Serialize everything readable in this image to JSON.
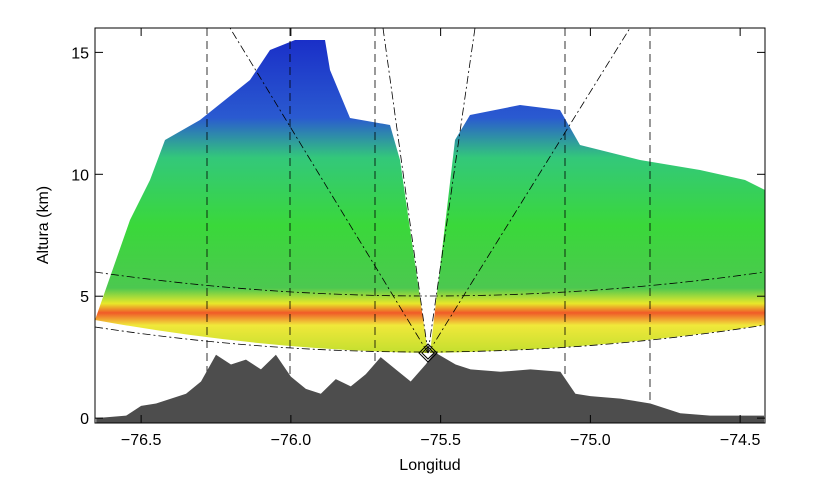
{
  "chart_data": {
    "type": "area",
    "xlabel": "Longitud",
    "ylabel": "Altura (km)",
    "xlim": [
      -76.654,
      -74.417
    ],
    "ylim": [
      -0.2,
      16
    ],
    "xticks": [
      {
        "value": -76.5,
        "label": "−76.5"
      },
      {
        "value": -76.0,
        "label": "−76.0"
      },
      {
        "value": -75.5,
        "label": "−75.5"
      },
      {
        "value": -75.0,
        "label": "−75.0"
      },
      {
        "value": -74.5,
        "label": "−74.5"
      }
    ],
    "yticks": [
      0,
      5,
      10,
      15
    ],
    "series": [
      {
        "color": "#4d4d4d",
        "x": [
          -76.65,
          -76.55,
          -76.5,
          -76.45,
          -76.4,
          -76.35,
          -76.3,
          -76.25,
          -76.2,
          -76.15,
          -76.1,
          -76.05,
          -76.0,
          -75.95,
          -75.9,
          -75.85,
          -75.8,
          -75.75,
          -75.7,
          -75.65,
          -75.6,
          -75.55,
          -75.52,
          -75.45,
          -75.4,
          -75.3,
          -75.2,
          -75.1,
          -75.05,
          -75.0,
          -74.9,
          -74.8,
          -74.7,
          -74.6,
          -74.5,
          -74.42
        ],
        "values": [
          0.0,
          0.1,
          0.5,
          0.6,
          0.8,
          1.0,
          1.5,
          2.6,
          2.2,
          2.4,
          2.0,
          2.6,
          1.7,
          1.2,
          1.0,
          1.6,
          1.3,
          1.8,
          2.5,
          2.0,
          1.5,
          2.2,
          2.7,
          2.2,
          2.0,
          1.9,
          2.0,
          1.9,
          1.0,
          0.9,
          0.8,
          0.6,
          0.2,
          0.1,
          0.1,
          0.1
        ]
      }
    ]
  }
}
